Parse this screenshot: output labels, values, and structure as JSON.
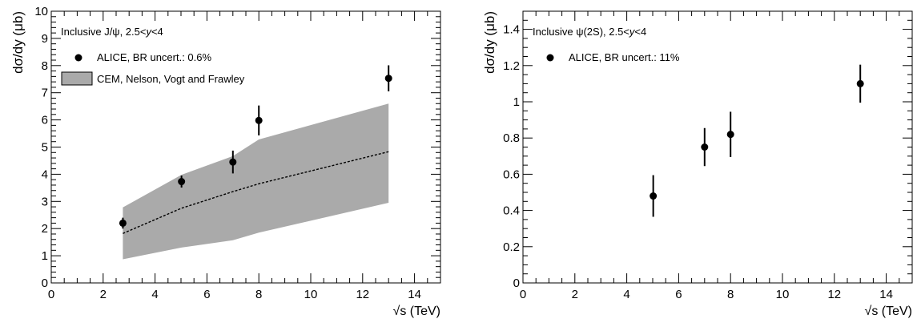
{
  "chart_data": [
    {
      "type": "scatter",
      "title": "",
      "annotation": "Inclusive J/ψ, 2.5<y<4",
      "xlabel": "√s (TeV)",
      "ylabel": "dσ/dy (μb)",
      "xlim": [
        0,
        15
      ],
      "ylim": [
        0,
        10
      ],
      "xticks": [
        0,
        2,
        4,
        6,
        8,
        10,
        12,
        14
      ],
      "yticks": [
        0,
        1,
        2,
        3,
        4,
        5,
        6,
        7,
        8,
        9,
        10
      ],
      "grid": false,
      "legend_position": "top-left",
      "series": [
        {
          "name": "ALICE, BR uncert.: 0.6%",
          "kind": "points",
          "color": "#000000",
          "x": [
            2.76,
            5.02,
            7,
            8,
            13
          ],
          "y": [
            2.2,
            3.73,
            4.45,
            5.98,
            7.53
          ],
          "yerr": [
            0.2,
            0.22,
            0.42,
            0.55,
            0.48
          ]
        },
        {
          "name": "CEM, Nelson, Vogt and Frawley",
          "kind": "band",
          "color": "#aaaaaa",
          "x": [
            2.76,
            5.02,
            7,
            8,
            13
          ],
          "y_low": [
            0.87,
            1.3,
            1.57,
            1.85,
            2.95
          ],
          "y_high": [
            2.78,
            3.98,
            4.67,
            5.28,
            6.6
          ],
          "y_central": [
            1.82,
            2.75,
            3.36,
            3.65,
            4.83
          ]
        }
      ]
    },
    {
      "type": "scatter",
      "title": "",
      "annotation": "Inclusive ψ(2S), 2.5<y<4",
      "xlabel": "√s (TeV)",
      "ylabel": "dσ/dy (μb)",
      "xlim": [
        0,
        15
      ],
      "ylim": [
        0,
        1.5
      ],
      "xticks": [
        0,
        2,
        4,
        6,
        8,
        10,
        12,
        14
      ],
      "yticks": [
        0,
        0.2,
        0.4,
        0.6,
        0.8,
        1,
        1.2,
        1.4
      ],
      "grid": false,
      "legend_position": "top-left",
      "series": [
        {
          "name": "ALICE, BR uncert.: 11%",
          "kind": "points",
          "color": "#000000",
          "x": [
            5.02,
            7,
            8,
            13
          ],
          "y": [
            0.48,
            0.75,
            0.82,
            1.1
          ],
          "yerr": [
            0.115,
            0.105,
            0.125,
            0.105
          ]
        }
      ]
    }
  ]
}
